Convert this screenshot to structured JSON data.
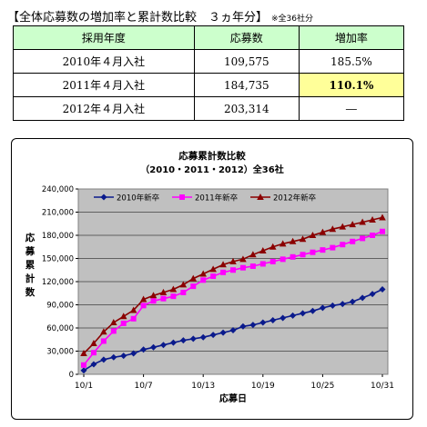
{
  "heading": {
    "title": "【全体応募数の増加率と累計数比較　３ヵ年分】",
    "note": "※全36社分"
  },
  "table": {
    "headers": [
      "採用年度",
      "応募数",
      "増加率"
    ],
    "rows": [
      [
        "2010年４月入社",
        "109,575",
        "185.5%"
      ],
      [
        "2011年４月入社",
        "184,735",
        "110.1%"
      ],
      [
        "2012年４月入社",
        "203,314",
        "―"
      ]
    ]
  },
  "chart_data": {
    "type": "line",
    "title": "応募累計数比較",
    "subtitle": "（2010・2011・2012）全36社",
    "xlabel": "応募日",
    "ylabel": "応募累計数",
    "ylim": [
      0,
      240000
    ],
    "yticks": [
      "0",
      "30,000",
      "60,000",
      "90,000",
      "120,000",
      "150,000",
      "180,000",
      "210,000",
      "240,000"
    ],
    "xticks": [
      "10/1",
      "10/7",
      "10/13",
      "10/19",
      "10/25",
      "10/31"
    ],
    "grid": "horizontal",
    "legend_position": "top",
    "x": [
      "10/1",
      "10/2",
      "10/3",
      "10/4",
      "10/5",
      "10/6",
      "10/7",
      "10/8",
      "10/9",
      "10/10",
      "10/11",
      "10/12",
      "10/13",
      "10/14",
      "10/15",
      "10/16",
      "10/17",
      "10/18",
      "10/19",
      "10/20",
      "10/21",
      "10/22",
      "10/23",
      "10/24",
      "10/25",
      "10/26",
      "10/27",
      "10/28",
      "10/29",
      "10/30",
      "10/31"
    ],
    "series": [
      {
        "name": "2010年新卒",
        "color": "#0a1a8c",
        "marker": "diamond",
        "values": [
          5000,
          13000,
          19000,
          22000,
          24000,
          27000,
          32000,
          35000,
          38000,
          41000,
          44000,
          46000,
          48000,
          51000,
          54000,
          57000,
          62000,
          64000,
          67000,
          70000,
          73000,
          76000,
          79000,
          82000,
          86000,
          89000,
          91000,
          94000,
          99000,
          104000,
          110000
        ]
      },
      {
        "name": "2011年新卒",
        "color": "#ff00ff",
        "marker": "square",
        "values": [
          12000,
          28000,
          43000,
          56000,
          66000,
          72000,
          89000,
          95000,
          98000,
          101000,
          106000,
          114000,
          122000,
          127000,
          132000,
          135000,
          138000,
          140000,
          143000,
          146000,
          149000,
          152000,
          155000,
          158000,
          161000,
          164000,
          168000,
          172000,
          176000,
          180000,
          185000
        ]
      },
      {
        "name": "2012年新卒",
        "color": "#8b0000",
        "marker": "triangle",
        "values": [
          27000,
          40000,
          55000,
          67000,
          75000,
          83000,
          97000,
          102000,
          106000,
          110000,
          116000,
          124000,
          130000,
          136000,
          142000,
          146000,
          149000,
          155000,
          160000,
          165000,
          169000,
          172000,
          175000,
          180000,
          184000,
          188000,
          191000,
          194000,
          197000,
          200000,
          203000
        ]
      }
    ]
  }
}
